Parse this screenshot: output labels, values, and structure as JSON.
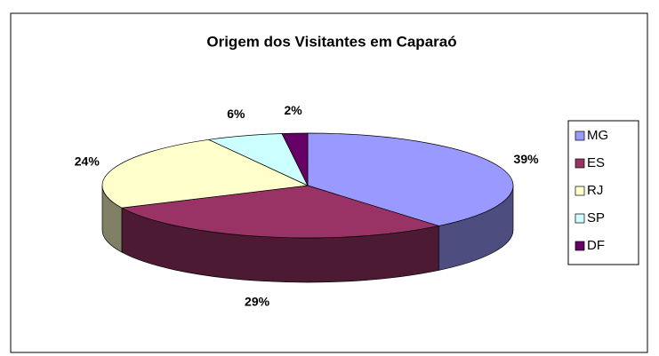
{
  "chart_data": {
    "type": "pie3d",
    "title": "Origem dos Visitantes em Caparaó",
    "categories": [
      "MG",
      "ES",
      "RJ",
      "SP",
      "DF"
    ],
    "values": [
      39,
      29,
      24,
      6,
      2
    ],
    "value_labels": [
      "39%",
      "29%",
      "24%",
      "6%",
      "2%"
    ],
    "colors": [
      "#9999ff",
      "#993366",
      "#ffffcc",
      "#ccffff",
      "#660066"
    ],
    "legend": "right"
  }
}
